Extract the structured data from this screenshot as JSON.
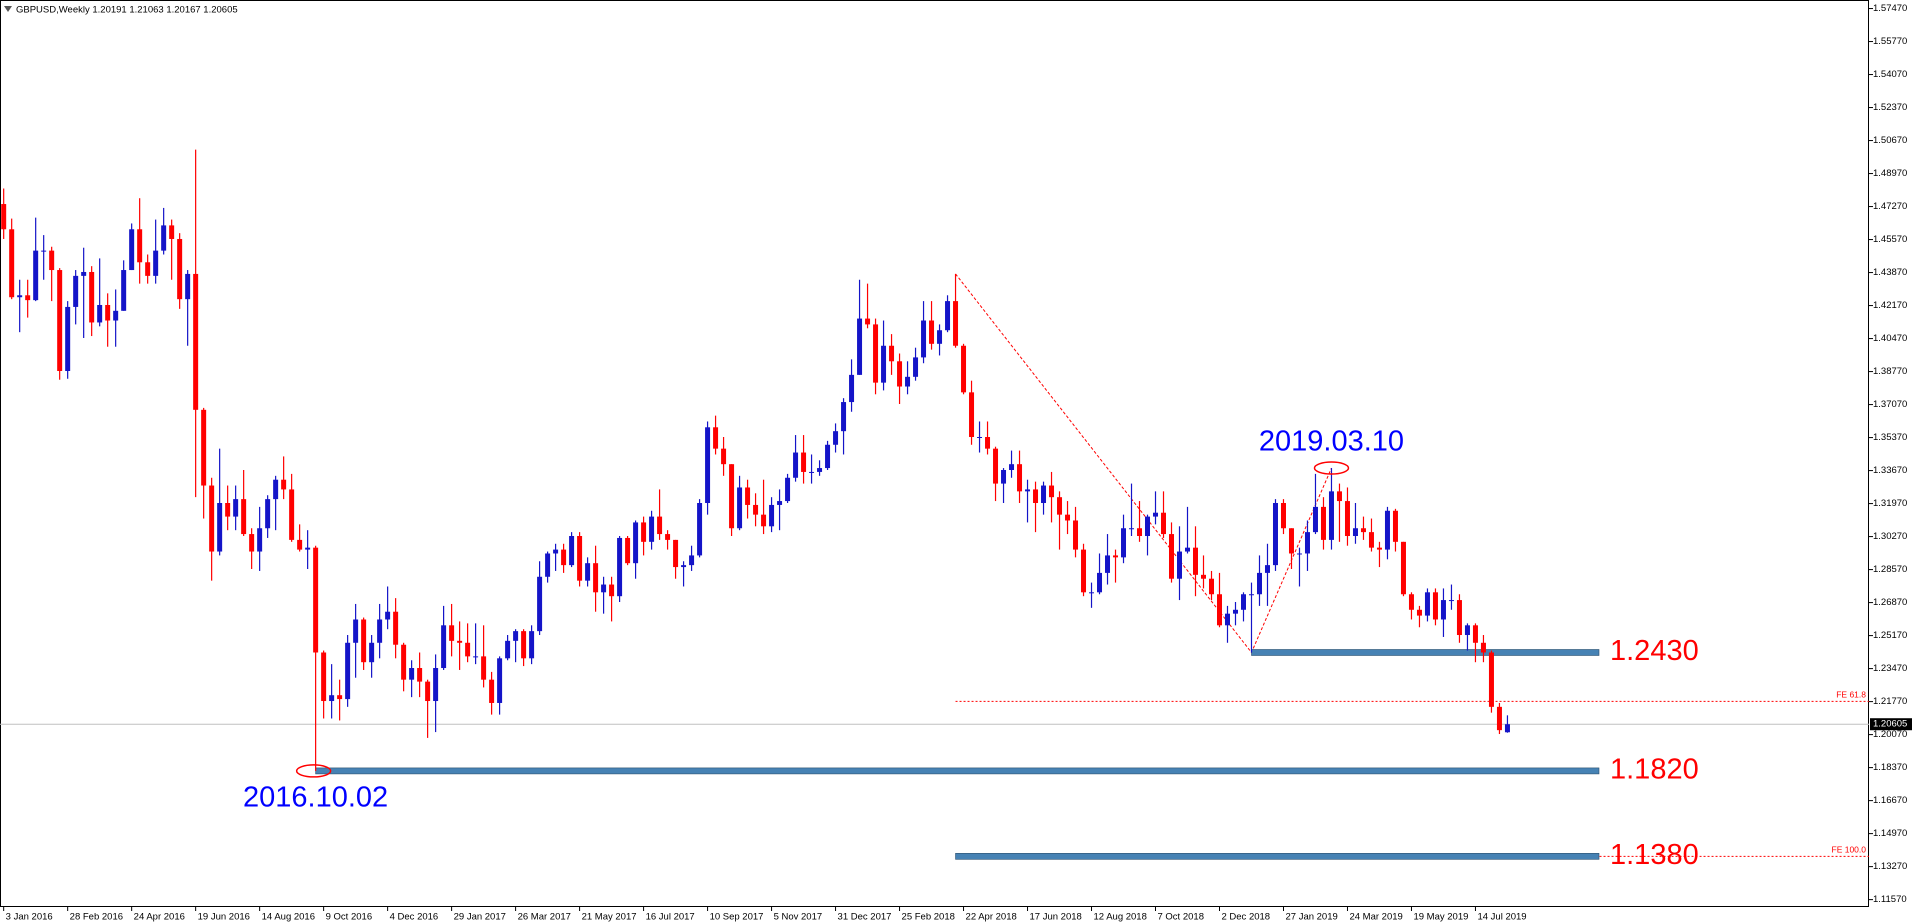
{
  "chart_data": {
    "type": "candlestick",
    "title": "GBPUSD,Weekly  1.20191 1.21063 1.20167 1.20605",
    "up_color": "#1414c8",
    "down_color": "#ff0000",
    "open": [
      1.474,
      1.461,
      1.426,
      1.427,
      1.4245,
      1.45,
      1.45,
      1.44,
      1.388,
      1.421,
      1.437,
      1.439,
      1.413,
      1.422,
      1.414,
      1.419,
      1.44,
      1.461,
      1.444,
      1.437,
      1.45,
      1.463,
      1.456,
      1.425,
      1.438,
      1.368,
      1.329,
      1.295,
      1.32,
      1.313,
      1.322,
      1.304,
      1.295,
      1.307,
      1.322,
      1.332,
      1.327,
      1.301,
      1.296,
      1.297,
      1.243,
      1.218,
      1.221,
      1.219,
      1.248,
      1.26,
      1.238,
      1.248,
      1.26,
      1.264,
      1.247,
      1.229,
      1.235,
      1.228,
      1.218,
      1.235,
      1.257,
      1.249,
      1.248,
      1.241,
      1.241,
      1.229,
      1.217,
      1.24,
      1.249,
      1.254,
      1.24,
      1.254,
      1.282,
      1.294,
      1.296,
      1.288,
      1.303,
      1.28,
      1.289,
      1.274,
      1.278,
      1.272,
      1.302,
      1.289,
      1.31,
      1.3,
      1.313,
      1.304,
      1.301,
      1.287,
      1.288,
      1.293,
      1.32,
      1.359,
      1.348,
      1.34,
      1.307,
      1.328,
      1.319,
      1.314,
      1.308,
      1.319,
      1.321,
      1.333,
      1.346,
      1.336,
      1.336,
      1.338,
      1.35,
      1.357,
      1.372,
      1.386,
      1.415,
      1.412,
      1.382,
      1.401,
      1.393,
      1.38,
      1.385,
      1.395,
      1.414,
      1.402,
      1.409,
      1.424,
      1.401,
      1.377,
      1.354,
      1.354,
      1.348,
      1.33,
      1.337,
      1.34,
      1.326,
      1.327,
      1.32,
      1.329,
      1.323,
      1.314,
      1.311,
      1.296,
      1.274,
      1.274,
      1.284,
      1.293,
      1.292,
      1.307,
      1.307,
      1.303,
      1.313,
      1.315,
      1.304,
      1.281,
      1.295,
      1.297,
      1.283,
      1.281,
      1.273,
      1.257,
      1.263,
      1.265,
      1.273,
      1.273,
      1.284,
      1.288,
      1.32,
      1.307,
      1.294,
      1.294,
      1.305,
      1.318,
      1.301,
      1.326,
      1.321,
      1.303,
      1.307,
      1.305,
      1.297,
      1.296,
      1.316,
      1.3,
      1.273,
      1.265,
      1.262,
      1.274,
      1.26,
      1.27,
      1.27,
      1.252,
      1.257,
      1.248,
      1.243,
      1.215,
      1.20191
    ],
    "high": [
      1.482,
      1.4665,
      1.435,
      1.435,
      1.467,
      1.458,
      1.452,
      1.441,
      1.424,
      1.44,
      1.4515,
      1.442,
      1.446,
      1.428,
      1.43,
      1.445,
      1.464,
      1.477,
      1.448,
      1.466,
      1.472,
      1.466,
      1.459,
      1.44,
      1.502,
      1.369,
      1.333,
      1.348,
      1.329,
      1.329,
      1.337,
      1.307,
      1.318,
      1.324,
      1.334,
      1.344,
      1.335,
      1.309,
      1.306,
      1.298,
      1.244,
      1.237,
      1.229,
      1.252,
      1.268,
      1.261,
      1.252,
      1.268,
      1.277,
      1.271,
      1.248,
      1.239,
      1.243,
      1.229,
      1.242,
      1.267,
      1.268,
      1.259,
      1.258,
      1.258,
      1.257,
      1.233,
      1.241,
      1.252,
      1.255,
      1.255,
      1.257,
      1.29,
      1.295,
      1.299,
      1.299,
      1.305,
      1.305,
      1.292,
      1.298,
      1.282,
      1.282,
      1.303,
      1.303,
      1.311,
      1.313,
      1.316,
      1.327,
      1.306,
      1.301,
      1.29,
      1.298,
      1.322,
      1.362,
      1.365,
      1.354,
      1.34,
      1.334,
      1.332,
      1.325,
      1.332,
      1.323,
      1.327,
      1.335,
      1.355,
      1.355,
      1.345,
      1.342,
      1.352,
      1.361,
      1.374,
      1.394,
      1.435,
      1.433,
      1.415,
      1.414,
      1.407,
      1.397,
      1.393,
      1.4,
      1.424,
      1.424,
      1.412,
      1.427,
      1.438,
      1.402,
      1.383,
      1.362,
      1.362,
      1.349,
      1.338,
      1.347,
      1.347,
      1.332,
      1.331,
      1.331,
      1.336,
      1.326,
      1.321,
      1.318,
      1.299,
      1.279,
      1.294,
      1.304,
      1.296,
      1.314,
      1.33,
      1.321,
      1.314,
      1.326,
      1.326,
      1.31,
      1.308,
      1.318,
      1.308,
      1.293,
      1.285,
      1.284,
      1.267,
      1.269,
      1.274,
      1.279,
      1.293,
      1.299,
      1.322,
      1.322,
      1.307,
      1.297,
      1.311,
      1.335,
      1.323,
      1.338,
      1.33,
      1.328,
      1.32,
      1.313,
      1.312,
      1.3,
      1.318,
      1.317,
      1.3,
      1.274,
      1.267,
      1.276,
      1.276,
      1.276,
      1.278,
      1.273,
      1.258,
      1.258,
      1.252,
      1.244,
      1.217,
      1.21063
    ],
    "low": [
      1.456,
      1.425,
      1.408,
      1.4155,
      1.424,
      1.435,
      1.424,
      1.3835,
      1.384,
      1.412,
      1.405,
      1.406,
      1.411,
      1.4005,
      1.4005,
      1.419,
      1.44,
      1.433,
      1.433,
      1.433,
      1.448,
      1.435,
      1.42,
      1.401,
      1.323,
      1.312,
      1.28,
      1.293,
      1.306,
      1.306,
      1.303,
      1.286,
      1.285,
      1.302,
      1.306,
      1.322,
      1.3,
      1.295,
      1.286,
      1.182,
      1.209,
      1.209,
      1.208,
      1.215,
      1.23,
      1.234,
      1.23,
      1.24,
      1.255,
      1.24,
      1.223,
      1.22,
      1.22,
      1.199,
      1.202,
      1.234,
      1.241,
      1.234,
      1.238,
      1.237,
      1.225,
      1.211,
      1.211,
      1.239,
      1.238,
      1.236,
      1.237,
      1.252,
      1.279,
      1.285,
      1.284,
      1.287,
      1.277,
      1.277,
      1.264,
      1.263,
      1.259,
      1.269,
      1.288,
      1.281,
      1.293,
      1.296,
      1.301,
      1.296,
      1.281,
      1.277,
      1.285,
      1.292,
      1.314,
      1.345,
      1.334,
      1.303,
      1.306,
      1.312,
      1.308,
      1.304,
      1.305,
      1.306,
      1.32,
      1.331,
      1.33,
      1.33,
      1.334,
      1.337,
      1.346,
      1.345,
      1.367,
      1.386,
      1.41,
      1.376,
      1.378,
      1.386,
      1.371,
      1.376,
      1.383,
      1.392,
      1.399,
      1.396,
      1.408,
      1.4,
      1.376,
      1.35,
      1.346,
      1.345,
      1.321,
      1.32,
      1.333,
      1.32,
      1.31,
      1.305,
      1.314,
      1.31,
      1.296,
      1.304,
      1.292,
      1.272,
      1.266,
      1.273,
      1.278,
      1.279,
      1.289,
      1.303,
      1.3,
      1.293,
      1.309,
      1.302,
      1.279,
      1.27,
      1.294,
      1.272,
      1.276,
      1.27,
      1.256,
      1.248,
      1.257,
      1.259,
      1.243,
      1.267,
      1.267,
      1.285,
      1.304,
      1.286,
      1.277,
      1.285,
      1.304,
      1.296,
      1.296,
      1.3,
      1.298,
      1.299,
      1.301,
      1.295,
      1.287,
      1.291,
      1.295,
      1.272,
      1.26,
      1.256,
      1.259,
      1.257,
      1.251,
      1.265,
      1.248,
      1.244,
      1.238,
      1.238,
      1.212,
      1.201,
      1.20167
    ],
    "close": [
      1.461,
      1.426,
      1.427,
      1.4245,
      1.45,
      1.45,
      1.44,
      1.388,
      1.421,
      1.437,
      1.439,
      1.413,
      1.422,
      1.414,
      1.419,
      1.44,
      1.461,
      1.444,
      1.437,
      1.45,
      1.463,
      1.456,
      1.425,
      1.438,
      1.368,
      1.329,
      1.295,
      1.32,
      1.313,
      1.322,
      1.304,
      1.295,
      1.307,
      1.322,
      1.332,
      1.327,
      1.301,
      1.296,
      1.297,
      1.243,
      1.218,
      1.221,
      1.219,
      1.248,
      1.26,
      1.238,
      1.248,
      1.26,
      1.264,
      1.247,
      1.229,
      1.235,
      1.228,
      1.218,
      1.235,
      1.257,
      1.249,
      1.248,
      1.241,
      1.241,
      1.229,
      1.217,
      1.24,
      1.249,
      1.254,
      1.24,
      1.254,
      1.282,
      1.294,
      1.296,
      1.288,
      1.303,
      1.28,
      1.289,
      1.274,
      1.278,
      1.272,
      1.302,
      1.289,
      1.31,
      1.3,
      1.313,
      1.304,
      1.301,
      1.287,
      1.288,
      1.293,
      1.32,
      1.359,
      1.348,
      1.34,
      1.307,
      1.328,
      1.319,
      1.314,
      1.308,
      1.319,
      1.321,
      1.333,
      1.346,
      1.336,
      1.336,
      1.338,
      1.35,
      1.357,
      1.372,
      1.386,
      1.415,
      1.412,
      1.382,
      1.401,
      1.393,
      1.38,
      1.385,
      1.395,
      1.414,
      1.402,
      1.409,
      1.424,
      1.401,
      1.377,
      1.354,
      1.354,
      1.348,
      1.33,
      1.337,
      1.34,
      1.326,
      1.327,
      1.32,
      1.329,
      1.323,
      1.314,
      1.311,
      1.296,
      1.274,
      1.274,
      1.284,
      1.293,
      1.292,
      1.307,
      1.307,
      1.303,
      1.313,
      1.315,
      1.304,
      1.281,
      1.295,
      1.297,
      1.283,
      1.281,
      1.273,
      1.257,
      1.263,
      1.265,
      1.273,
      1.273,
      1.284,
      1.288,
      1.32,
      1.307,
      1.294,
      1.294,
      1.305,
      1.318,
      1.301,
      1.326,
      1.321,
      1.303,
      1.307,
      1.305,
      1.297,
      1.296,
      1.316,
      1.3,
      1.273,
      1.265,
      1.262,
      1.274,
      1.26,
      1.27,
      1.27,
      1.252,
      1.257,
      1.248,
      1.243,
      1.215,
      1.203,
      1.20605
    ],
    "xlim": [
      -0.46,
      233.2
    ],
    "xticks": [
      {
        "value": 0,
        "label": "3 Jan 2016"
      },
      {
        "value": 8,
        "label": "28 Feb 2016"
      },
      {
        "value": 16,
        "label": "24 Apr 2016"
      },
      {
        "value": 24,
        "label": "19 Jun 2016"
      },
      {
        "value": 32,
        "label": "14 Aug 2016"
      },
      {
        "value": 40,
        "label": "9 Oct 2016"
      },
      {
        "value": 48,
        "label": "4 Dec 2016"
      },
      {
        "value": 56,
        "label": "29 Jan 2017"
      },
      {
        "value": 64,
        "label": "26 Mar 2017"
      },
      {
        "value": 72,
        "label": "21 May 2017"
      },
      {
        "value": 80,
        "label": "16 Jul 2017"
      },
      {
        "value": 88,
        "label": "10 Sep 2017"
      },
      {
        "value": 96,
        "label": "5 Nov 2017"
      },
      {
        "value": 104,
        "label": "31 Dec 2017"
      },
      {
        "value": 112,
        "label": "25 Feb 2018"
      },
      {
        "value": 120,
        "label": "22 Apr 2018"
      },
      {
        "value": 128,
        "label": "17 Jun 2018"
      },
      {
        "value": 136,
        "label": "12 Aug 2018"
      },
      {
        "value": 144,
        "label": "7 Oct 2018"
      },
      {
        "value": 152,
        "label": "2 Dec 2018"
      },
      {
        "value": 160,
        "label": "27 Jan 2019"
      },
      {
        "value": 168,
        "label": "24 Mar 2019"
      },
      {
        "value": 176,
        "label": "19 May 2019"
      },
      {
        "value": 184,
        "label": "14 Jul 2019"
      }
    ],
    "ylim": [
      1.1119,
      1.5791
    ],
    "yticks": [
      {
        "value": 1.5747,
        "label": "1.57470"
      },
      {
        "value": 1.5577,
        "label": "1.55770"
      },
      {
        "value": 1.5407,
        "label": "1.54070"
      },
      {
        "value": 1.5237,
        "label": "1.52370"
      },
      {
        "value": 1.5067,
        "label": "1.50670"
      },
      {
        "value": 1.4897,
        "label": "1.48970"
      },
      {
        "value": 1.4727,
        "label": "1.47270"
      },
      {
        "value": 1.4557,
        "label": "1.45570"
      },
      {
        "value": 1.4387,
        "label": "1.43870"
      },
      {
        "value": 1.4217,
        "label": "1.42170"
      },
      {
        "value": 1.4047,
        "label": "1.40470"
      },
      {
        "value": 1.3877,
        "label": "1.38770"
      },
      {
        "value": 1.3707,
        "label": "1.37070"
      },
      {
        "value": 1.3537,
        "label": "1.35370"
      },
      {
        "value": 1.3367,
        "label": "1.33670"
      },
      {
        "value": 1.3197,
        "label": "1.31970"
      },
      {
        "value": 1.3027,
        "label": "1.30270"
      },
      {
        "value": 1.2857,
        "label": "1.28570"
      },
      {
        "value": 1.2687,
        "label": "1.26870"
      },
      {
        "value": 1.2517,
        "label": "1.25170"
      },
      {
        "value": 1.2347,
        "label": "1.23470"
      },
      {
        "value": 1.2177,
        "label": "1.21770"
      },
      {
        "value": 1.2007,
        "label": "1.20070"
      },
      {
        "value": 1.1837,
        "label": "1.18370"
      },
      {
        "value": 1.1667,
        "label": "1.16670"
      },
      {
        "value": 1.1497,
        "label": "1.14970"
      },
      {
        "value": 1.1327,
        "label": "1.13270"
      },
      {
        "value": 1.1157,
        "label": "1.11570"
      }
    ],
    "last": {
      "value": 1.20605,
      "label": "1.20605"
    },
    "levels": [
      {
        "value": 1.243,
        "label": "1.2430",
        "start": 156
      },
      {
        "value": 1.182,
        "label": "1.1820",
        "start": 39
      },
      {
        "value": 1.138,
        "label": "1.1380",
        "start": 119
      }
    ],
    "fibo": {
      "points": [
        {
          "x": 119,
          "y": 1.438
        },
        {
          "x": 156,
          "y": 1.243
        },
        {
          "x": 166,
          "y": 1.338
        }
      ],
      "levels": [
        {
          "value": 1.2178,
          "label": "FE 61.8"
        },
        {
          "value": 1.138,
          "label": "FE 100.0"
        }
      ]
    },
    "annotations": [
      {
        "text": "2016.10.02",
        "x": 39,
        "y": 1.182
      },
      {
        "text": "2019.03.10",
        "x": 166,
        "y": 1.338
      }
    ]
  }
}
